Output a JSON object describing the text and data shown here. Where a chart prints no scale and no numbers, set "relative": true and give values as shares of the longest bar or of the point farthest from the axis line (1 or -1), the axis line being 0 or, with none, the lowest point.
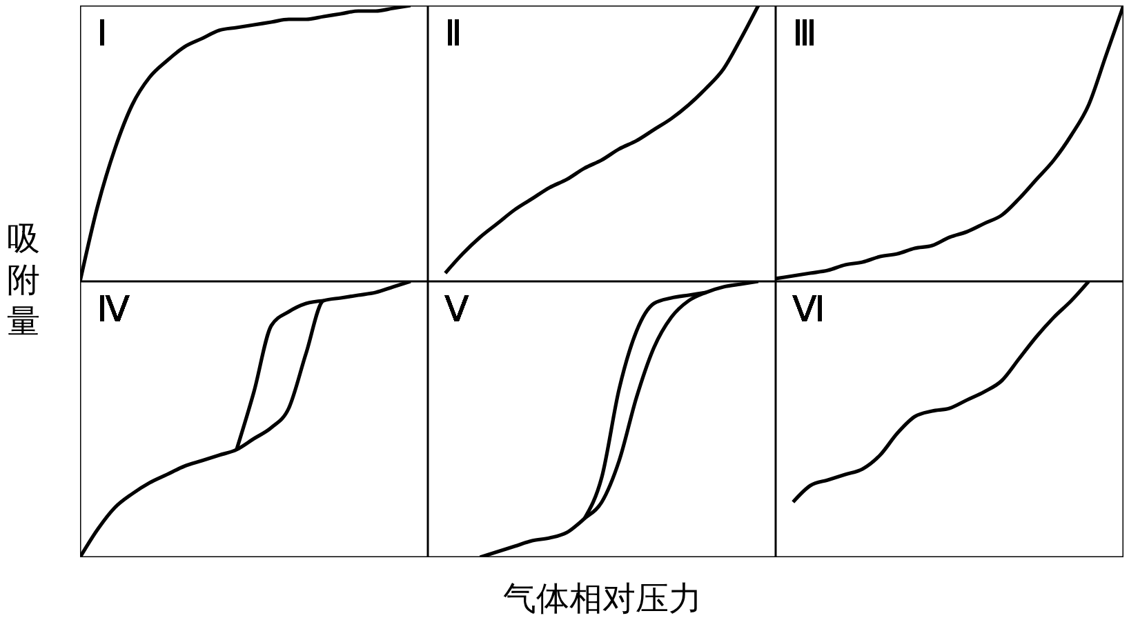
{
  "chart_data": [
    {
      "type": "line",
      "title": "Ⅰ",
      "ylabel": "吸附量",
      "relative": true,
      "categories": [
        null,
        null,
        null,
        null,
        null,
        null,
        null,
        null,
        null,
        null,
        null,
        null,
        null,
        null,
        null,
        null,
        null,
        null,
        null,
        null,
        null
      ],
      "series": [
        {
          "color": "#000000",
          "values": [
            0,
            0.27,
            0.48,
            0.64,
            0.74,
            0.8,
            0.85,
            0.88,
            0.91,
            0.92,
            0.93,
            0.94,
            0.95,
            0.95,
            0.96,
            0.97,
            0.98,
            0.98,
            0.99,
            1,
            null
          ]
        }
      ]
    },
    {
      "type": "line",
      "title": "Ⅱ",
      "relative": true,
      "categories": [
        null,
        null,
        null,
        null,
        null,
        null,
        null,
        null,
        null,
        null,
        null,
        null,
        null,
        null,
        null,
        null,
        null,
        null,
        null,
        null,
        null
      ],
      "series": [
        {
          "color": "#000000",
          "values": [
            null,
            0.03,
            0.1,
            0.16,
            0.21,
            0.26,
            0.3,
            0.34,
            0.37,
            0.41,
            0.44,
            0.48,
            0.51,
            0.55,
            0.59,
            0.64,
            0.7,
            0.77,
            0.88,
            1,
            null
          ]
        }
      ]
    },
    {
      "type": "line",
      "title": "Ⅲ",
      "relative": true,
      "categories": [
        null,
        null,
        null,
        null,
        null,
        null,
        null,
        null,
        null,
        null,
        null,
        null,
        null,
        null,
        null,
        null,
        null,
        null,
        null,
        null,
        null
      ],
      "series": [
        {
          "color": "#000000",
          "values": [
            0.01,
            0.02,
            0.03,
            0.04,
            0.06,
            0.07,
            0.09,
            0.1,
            0.12,
            0.13,
            0.16,
            0.18,
            0.21,
            0.24,
            0.3,
            0.37,
            0.44,
            0.53,
            0.64,
            0.82,
            1
          ]
        }
      ]
    },
    {
      "type": "line",
      "title": "Ⅳ",
      "relative": true,
      "categories": [
        null,
        null,
        null,
        null,
        null,
        null,
        null,
        null,
        null,
        null,
        null,
        null,
        null,
        null,
        null,
        null,
        null,
        null,
        null,
        null,
        null
      ],
      "series": [
        {
          "color": "#000000",
          "values": [
            0,
            0.1,
            0.18,
            0.23,
            0.27,
            0.3,
            0.33,
            0.35,
            0.37,
            0.39,
            0.43,
            0.47,
            0.54,
            0.74,
            0.93,
            0.94,
            0.95,
            0.96,
            0.98,
            1,
            null
          ]
        },
        {
          "color": "#000000",
          "values": [
            null,
            null,
            null,
            null,
            null,
            null,
            null,
            null,
            null,
            0.39,
            0.6,
            0.84,
            0.89,
            0.92,
            0.93,
            null,
            null,
            null,
            null,
            null,
            null
          ]
        }
      ]
    },
    {
      "type": "line",
      "title": "Ⅴ",
      "xlabel": "气体相对压力",
      "relative": true,
      "categories": [
        null,
        null,
        null,
        null,
        null,
        null,
        null,
        null,
        null,
        null,
        null,
        null,
        null,
        null,
        null,
        null,
        null,
        null,
        null,
        null,
        null
      ],
      "series": [
        {
          "color": "#000000",
          "values": [
            null,
            null,
            null,
            0,
            0.02,
            0.04,
            0.06,
            0.07,
            0.09,
            0.14,
            0.2,
            0.35,
            0.58,
            0.76,
            0.87,
            0.93,
            0.96,
            0.98,
            0.99,
            1,
            null
          ]
        },
        {
          "color": "#000000",
          "values": [
            null,
            null,
            null,
            null,
            null,
            null,
            null,
            null,
            null,
            0.14,
            0.29,
            0.61,
            0.82,
            0.92,
            0.94,
            0.95,
            0.96,
            null,
            null,
            null,
            null
          ]
        }
      ]
    },
    {
      "type": "line",
      "title": "Ⅵ",
      "relative": true,
      "categories": [
        null,
        null,
        null,
        null,
        null,
        null,
        null,
        null,
        null,
        null,
        null,
        null,
        null,
        null,
        null,
        null,
        null,
        null,
        null,
        null,
        null
      ],
      "series": [
        {
          "color": "#000000",
          "values": [
            null,
            0.2,
            0.26,
            0.28,
            0.3,
            0.32,
            0.37,
            0.45,
            0.51,
            0.53,
            0.54,
            0.57,
            0.6,
            0.64,
            0.72,
            0.8,
            0.87,
            0.93,
            1,
            null,
            null
          ]
        }
      ]
    }
  ]
}
